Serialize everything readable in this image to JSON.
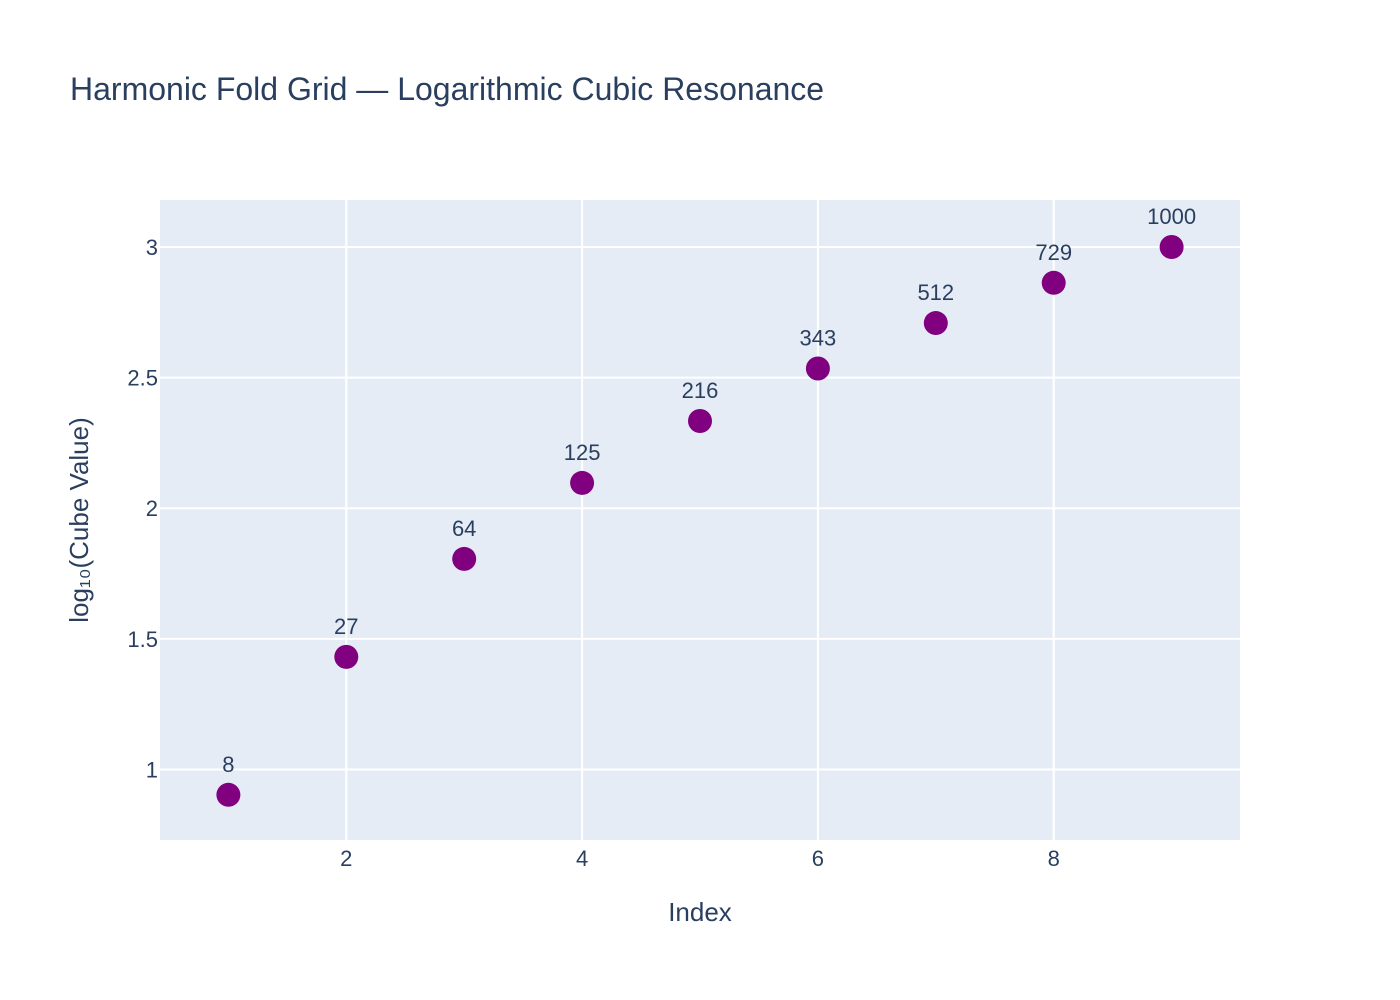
{
  "chart_data": {
    "type": "scatter",
    "title": "Harmonic Fold Grid — Logarithmic Cubic Resonance",
    "xlabel": "Index",
    "ylabel": "log₁₀(Cube Value)",
    "x": [
      1,
      2,
      3,
      4,
      5,
      6,
      7,
      8,
      9
    ],
    "y": [
      0.903,
      1.431,
      1.806,
      2.097,
      2.334,
      2.535,
      2.709,
      2.863,
      3.0
    ],
    "point_labels": [
      "8",
      "27",
      "64",
      "125",
      "216",
      "343",
      "512",
      "729",
      "1000"
    ],
    "xlim": [
      0.42,
      9.58
    ],
    "ylim": [
      0.73,
      3.18
    ],
    "x_ticks": [
      2,
      4,
      6,
      8
    ],
    "x_tick_labels": [
      "2",
      "4",
      "6",
      "8"
    ],
    "y_ticks": [
      1,
      1.5,
      2,
      2.5,
      3
    ],
    "y_tick_labels": [
      "1",
      "1.5",
      "2",
      "2.5",
      "3"
    ],
    "grid": true,
    "legend": "none",
    "colors": {
      "marker": "#800080",
      "plot_background": "#e5ecf6",
      "grid": "#ffffff",
      "text": "#2a3f5f"
    }
  }
}
